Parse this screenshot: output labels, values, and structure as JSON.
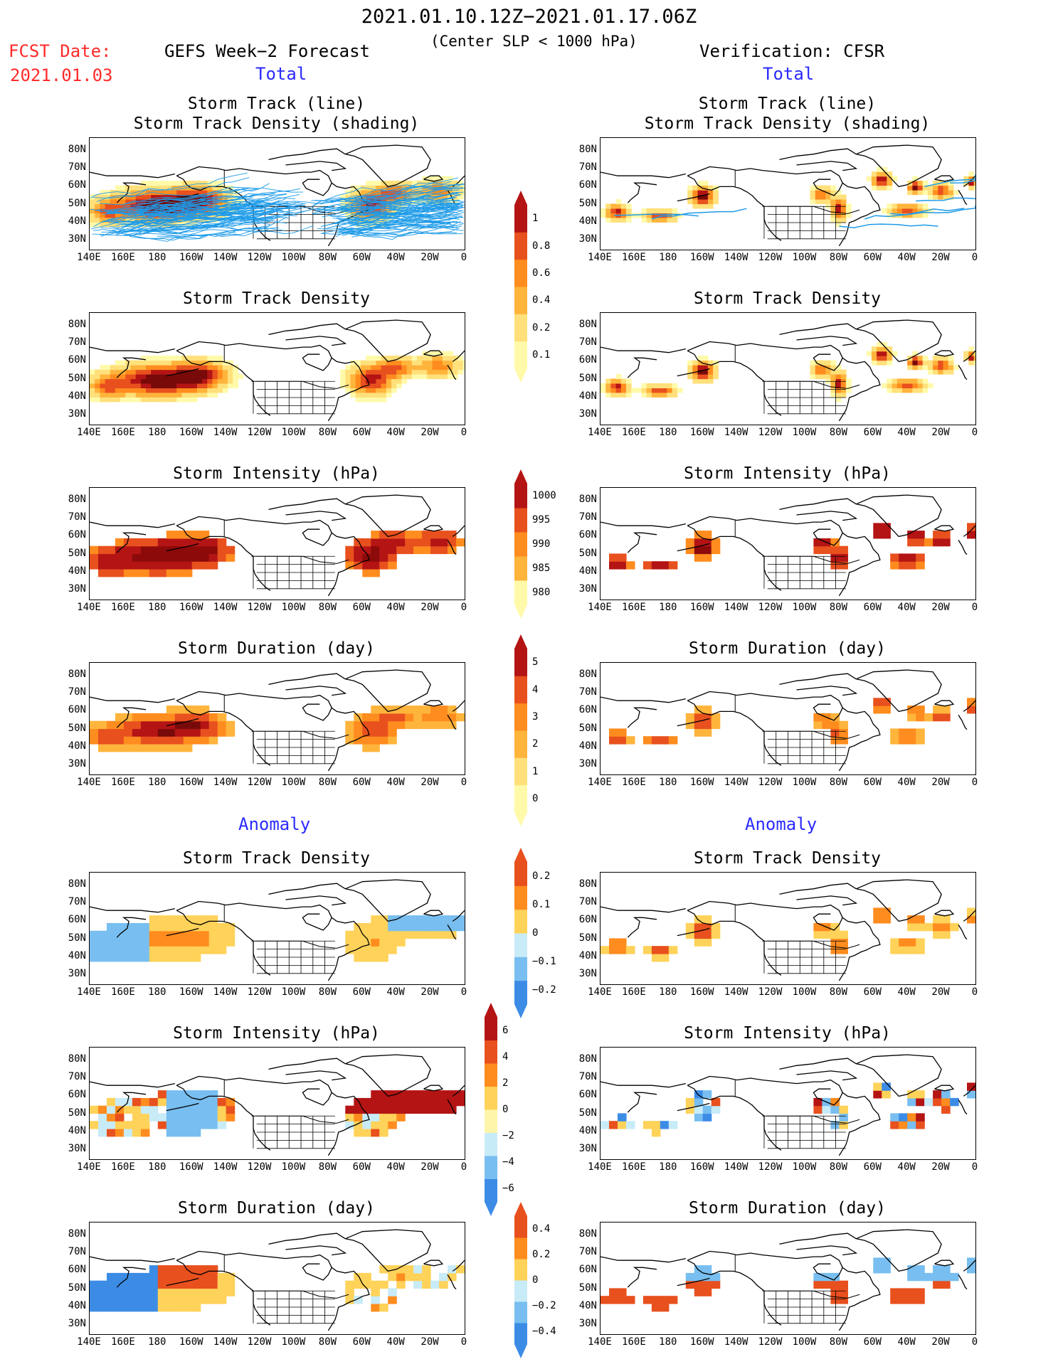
{
  "header": {
    "date_range": "2021.01.10.12Z−2021.01.17.06Z",
    "criterion": "(Center SLP < 1000 hPa)",
    "fcst_label": "FCST Date:",
    "fcst_date": "2021.01.03",
    "left_title": "GEFS Week−2 Forecast",
    "right_title": "Verification: CFSR",
    "total_left": "Total",
    "total_right": "Total",
    "anomaly_left": "Anomaly",
    "anomaly_right": "Anomaly"
  },
  "panel_titles": {
    "track": [
      "Storm Track (line)",
      "Storm Track Density (shading)"
    ],
    "density": "Storm Track Density",
    "intensity": "Storm Intensity (hPa)",
    "duration": "Storm Duration (day)"
  },
  "axes": {
    "lat_labels": [
      "80N",
      "70N",
      "60N",
      "50N",
      "40N",
      "30N"
    ],
    "lon_labels": [
      "140E",
      "160E",
      "180",
      "160W",
      "140W",
      "120W",
      "100W",
      "80W",
      "60W",
      "40W",
      "20W",
      "0"
    ]
  },
  "colorbars": {
    "density_total": [
      "1",
      "0.8",
      "0.6",
      "0.4",
      "0.2",
      "0.1"
    ],
    "intensity_total": [
      "1000",
      "995",
      "990",
      "985",
      "980"
    ],
    "duration_total": [
      "5",
      "4",
      "3",
      "2",
      "1",
      "0"
    ],
    "density_anom": [
      "0.2",
      "0.1",
      "0",
      "−0.1",
      "−0.2"
    ],
    "intensity_anom": [
      "6",
      "4",
      "2",
      "0",
      "−2",
      "−4",
      "−6"
    ],
    "duration_anom": [
      "0.4",
      "0.2",
      "0",
      "−0.2",
      "−0.4"
    ]
  },
  "colors": {
    "header_red": "#ff2a2a",
    "subtitle_blue": "#2a2aff",
    "track_line": "#1e9be8",
    "seq_density": [
      "#fffaaa",
      "#ffe07a",
      "#ffb43c",
      "#ff8c1e",
      "#e8501e",
      "#b41414",
      "#780a0a"
    ],
    "seq_intensity": [
      "#fffaaa",
      "#ffb43c",
      "#ff8c1e",
      "#e8501e",
      "#b41414",
      "#8c0a0a"
    ],
    "div": [
      "#1464d2",
      "#3c8ce6",
      "#78bef0",
      "#c8ebf8",
      "#fff5aa",
      "#ffd25a",
      "#ff8c1e",
      "#e8501e",
      "#b41414"
    ]
  }
}
